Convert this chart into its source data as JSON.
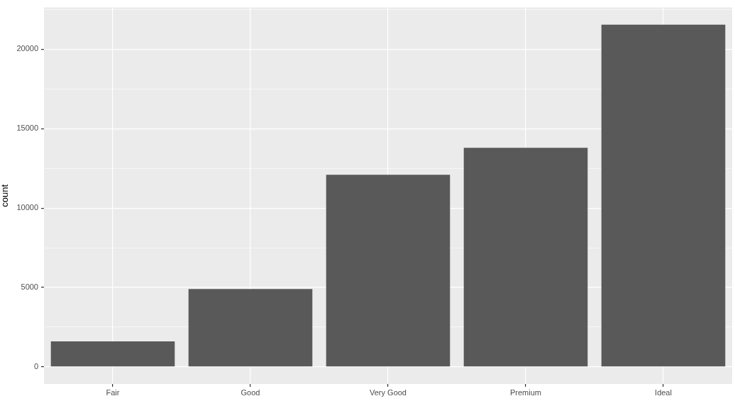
{
  "chart_data": {
    "type": "bar",
    "ylabel": "count",
    "categories": [
      "Fair",
      "Good",
      "Very Good",
      "Premium",
      "Ideal"
    ],
    "values": [
      1600,
      4900,
      12100,
      13800,
      21550
    ],
    "color": "#595959",
    "ylim": [
      -1077.55,
      22628.55
    ],
    "yticks": [
      0,
      {
        "value": 2500,
        "label": null
      },
      5000,
      {
        "value": 7500,
        "label": null
      },
      10000,
      {
        "value": 12500,
        "label": null
      },
      15000,
      {
        "value": 17500,
        "label": null
      },
      20000,
      {
        "value": 22500,
        "label": null
      }
    ],
    "grid": true
  }
}
